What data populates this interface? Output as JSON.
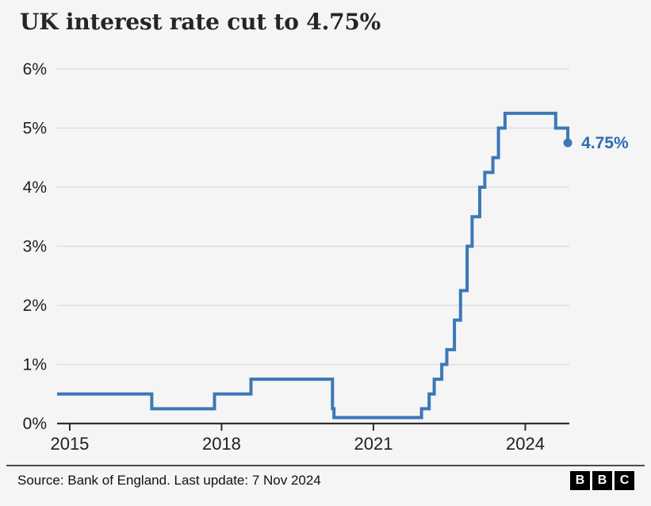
{
  "title": "UK interest rate cut to 4.75%",
  "footer": {
    "source": "Source: Bank of England. Last update: 7 Nov 2024",
    "logo_letters": [
      "B",
      "B",
      "C"
    ]
  },
  "colors": {
    "background": "#f5f5f5",
    "line": "#3b78b6",
    "end_label": "#2d6cb0",
    "grid": "#d9d9d9",
    "axis": "#2e2e2e",
    "tick_text": "#1f1f1f"
  },
  "chart_data": {
    "type": "line",
    "step": true,
    "title": "UK interest rate cut to 4.75%",
    "xlabel": "",
    "ylabel": "",
    "x_unit": "decimal year",
    "y_unit": "percent",
    "xlim": [
      2014.75,
      2024.87
    ],
    "ylim": [
      0,
      6
    ],
    "grid": "horizontal",
    "legend": "none",
    "yticks": [
      "0%",
      "1%",
      "2%",
      "3%",
      "4%",
      "5%",
      "6%"
    ],
    "ytick_values": [
      0,
      1,
      2,
      3,
      4,
      5,
      6
    ],
    "xticks": [
      "2015",
      "2018",
      "2021",
      "2024"
    ],
    "xtick_values": [
      2015,
      2018,
      2021,
      2024
    ],
    "series": [
      {
        "name": "UK Bank of England interest rate",
        "points": [
          [
            2014.75,
            0.5
          ],
          [
            2016.62,
            0.25
          ],
          [
            2017.86,
            0.5
          ],
          [
            2018.58,
            0.75
          ],
          [
            2020.19,
            0.25
          ],
          [
            2020.22,
            0.1
          ],
          [
            2021.95,
            0.25
          ],
          [
            2022.1,
            0.5
          ],
          [
            2022.2,
            0.75
          ],
          [
            2022.35,
            1.0
          ],
          [
            2022.45,
            1.25
          ],
          [
            2022.6,
            1.75
          ],
          [
            2022.72,
            2.25
          ],
          [
            2022.85,
            3.0
          ],
          [
            2022.95,
            3.5
          ],
          [
            2023.1,
            4.0
          ],
          [
            2023.2,
            4.25
          ],
          [
            2023.36,
            4.5
          ],
          [
            2023.47,
            5.0
          ],
          [
            2023.6,
            5.25
          ],
          [
            2024.6,
            5.0
          ],
          [
            2024.84,
            4.75
          ]
        ],
        "end_value": 4.75,
        "end_label": "4.75%"
      }
    ]
  }
}
